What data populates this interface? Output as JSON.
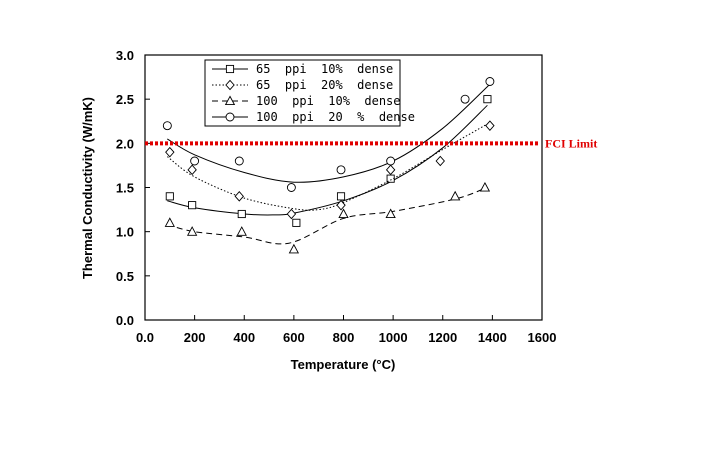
{
  "chart_data": {
    "type": "scatter",
    "xlabel": "Temperature (°C)",
    "ylabel": "Thermal Conductivity (W/mK)",
    "xlim": [
      0,
      1600
    ],
    "ylim": [
      0,
      3.0
    ],
    "xticks": [
      "0.0",
      "200",
      "400",
      "600",
      "800",
      "1000",
      "1200",
      "1400",
      "1600"
    ],
    "yticks": [
      "0.0",
      "0.5",
      "1.0",
      "1.5",
      "2.0",
      "2.5",
      "3.0"
    ],
    "xtick_values": [
      0,
      200,
      400,
      600,
      800,
      1000,
      1200,
      1400,
      1600
    ],
    "ytick_values": [
      0,
      0.5,
      1.0,
      1.5,
      2.0,
      2.5,
      3.0
    ],
    "grid": false,
    "legend_position": "top-center",
    "series": [
      {
        "name": "65  ppi  10%  dense",
        "marker": "square",
        "line": "solid",
        "color": "#000000",
        "x": [
          100,
          190,
          390,
          610,
          790,
          990,
          1380
        ],
        "y": [
          1.4,
          1.3,
          1.2,
          1.1,
          1.4,
          1.6,
          2.5
        ],
        "fit_x": [
          90,
          200,
          400,
          520,
          600,
          800,
          1000,
          1200,
          1380
        ],
        "fit_y": [
          1.35,
          1.27,
          1.2,
          1.19,
          1.21,
          1.35,
          1.58,
          1.95,
          2.43
        ]
      },
      {
        "name": "65  ppi  20%  dense",
        "marker": "diamond",
        "line": "dotted",
        "color": "#000000",
        "x": [
          100,
          190,
          380,
          590,
          790,
          990,
          1190,
          1390
        ],
        "y": [
          1.9,
          1.7,
          1.4,
          1.2,
          1.3,
          1.7,
          1.8,
          2.2
        ],
        "fit_x": [
          90,
          200,
          400,
          600,
          700,
          800,
          1000,
          1200,
          1380
        ],
        "fit_y": [
          1.85,
          1.62,
          1.38,
          1.26,
          1.25,
          1.33,
          1.6,
          1.93,
          2.22
        ]
      },
      {
        "name": "100  ppi  10%  dense",
        "marker": "triangle",
        "line": "dashed",
        "color": "#000000",
        "x": [
          100,
          190,
          390,
          600,
          800,
          990,
          1250,
          1370
        ],
        "y": [
          1.1,
          1.0,
          1.0,
          0.8,
          1.2,
          1.2,
          1.4,
          1.5
        ],
        "fit_x": [
          90,
          200,
          400,
          580,
          800,
          1000,
          1250,
          1370
        ],
        "fit_y": [
          1.08,
          1.0,
          0.94,
          0.87,
          1.15,
          1.23,
          1.37,
          1.49
        ]
      },
      {
        "name": "100  ppi  20  %  dense",
        "marker": "circle",
        "line": "solid",
        "color": "#000000",
        "x": [
          90,
          200,
          380,
          590,
          790,
          990,
          1290,
          1390
        ],
        "y": [
          2.2,
          1.8,
          1.8,
          1.5,
          1.7,
          1.8,
          2.5,
          2.7
        ],
        "fit_x": [
          90,
          200,
          400,
          600,
          800,
          1000,
          1200,
          1390
        ],
        "fit_y": [
          2.05,
          1.87,
          1.67,
          1.56,
          1.62,
          1.8,
          2.17,
          2.67
        ]
      }
    ],
    "reference_line": {
      "label": "FCI Limit",
      "y": 2.0,
      "color": "#e00000"
    }
  }
}
